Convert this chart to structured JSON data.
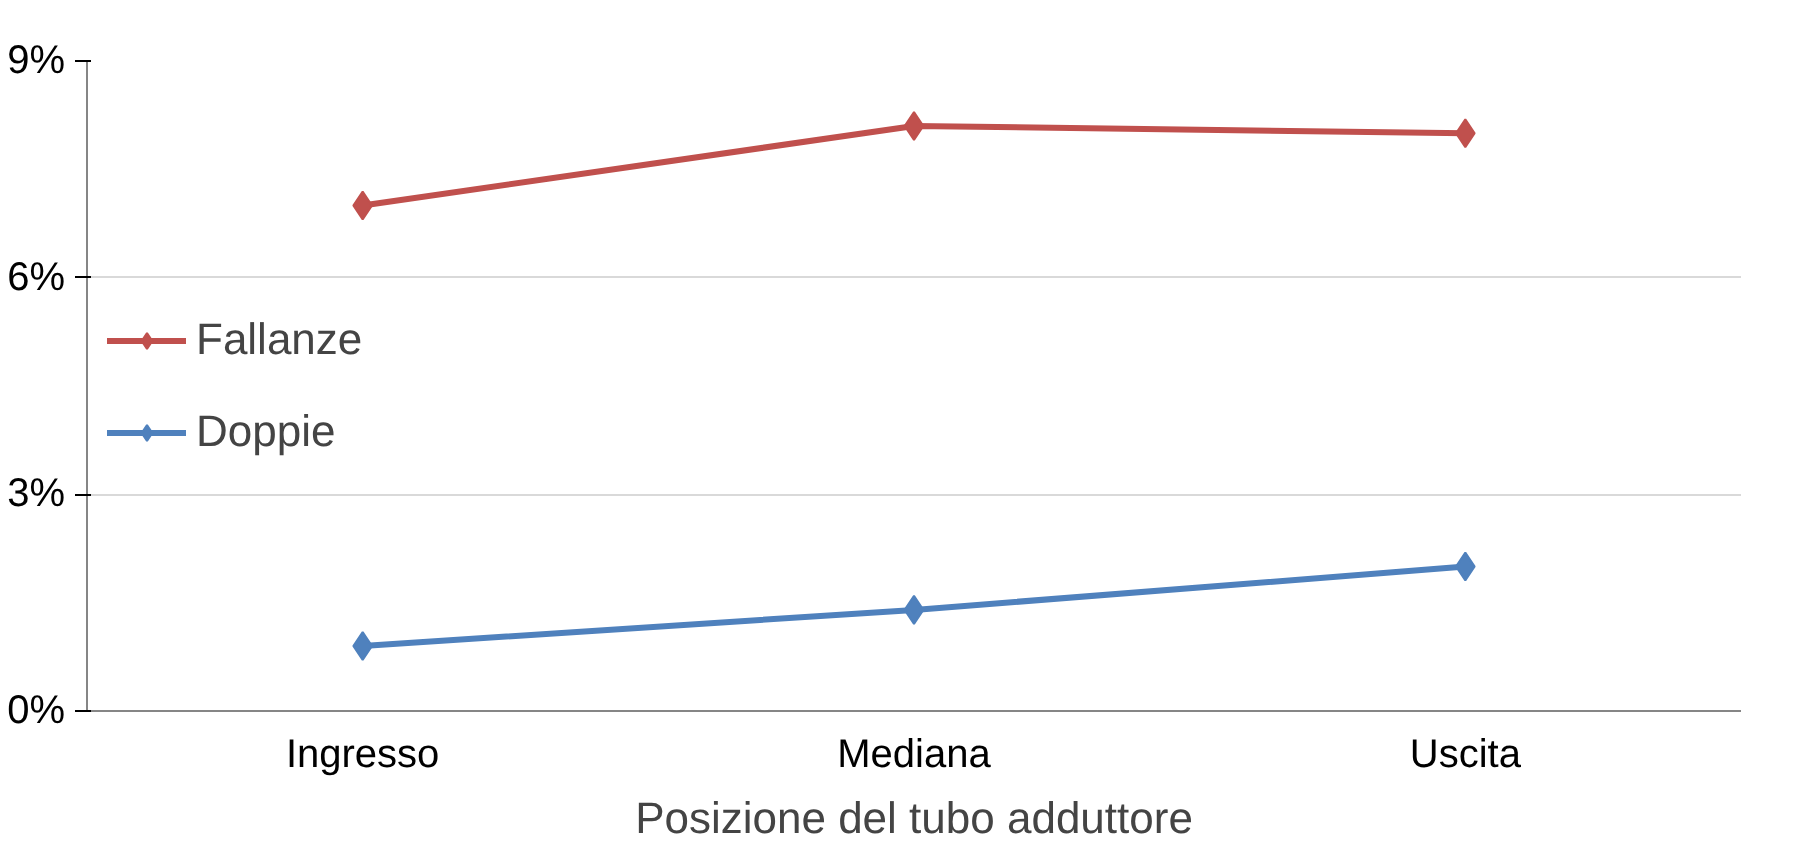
{
  "chart_data": {
    "type": "line",
    "xlabel": "Posizione del tubo adduttore",
    "categories": [
      "Ingresso",
      "Mediana",
      "Uscita"
    ],
    "series": [
      {
        "name": "Fallanze",
        "color": "#c0504d",
        "values": [
          7.0,
          8.1,
          8.0
        ]
      },
      {
        "name": "Doppie",
        "color": "#4f81bd",
        "values": [
          0.9,
          1.4,
          2.0
        ]
      }
    ],
    "ylim": [
      0,
      9
    ],
    "yticks": [
      {
        "value": 0,
        "label": "0%"
      },
      {
        "value": 3,
        "label": "3%"
      },
      {
        "value": 6,
        "label": "6%"
      },
      {
        "value": 9,
        "label": "9%"
      }
    ],
    "grid": "y",
    "legend": "left",
    "marker": "diamond",
    "line_style": "solid"
  }
}
